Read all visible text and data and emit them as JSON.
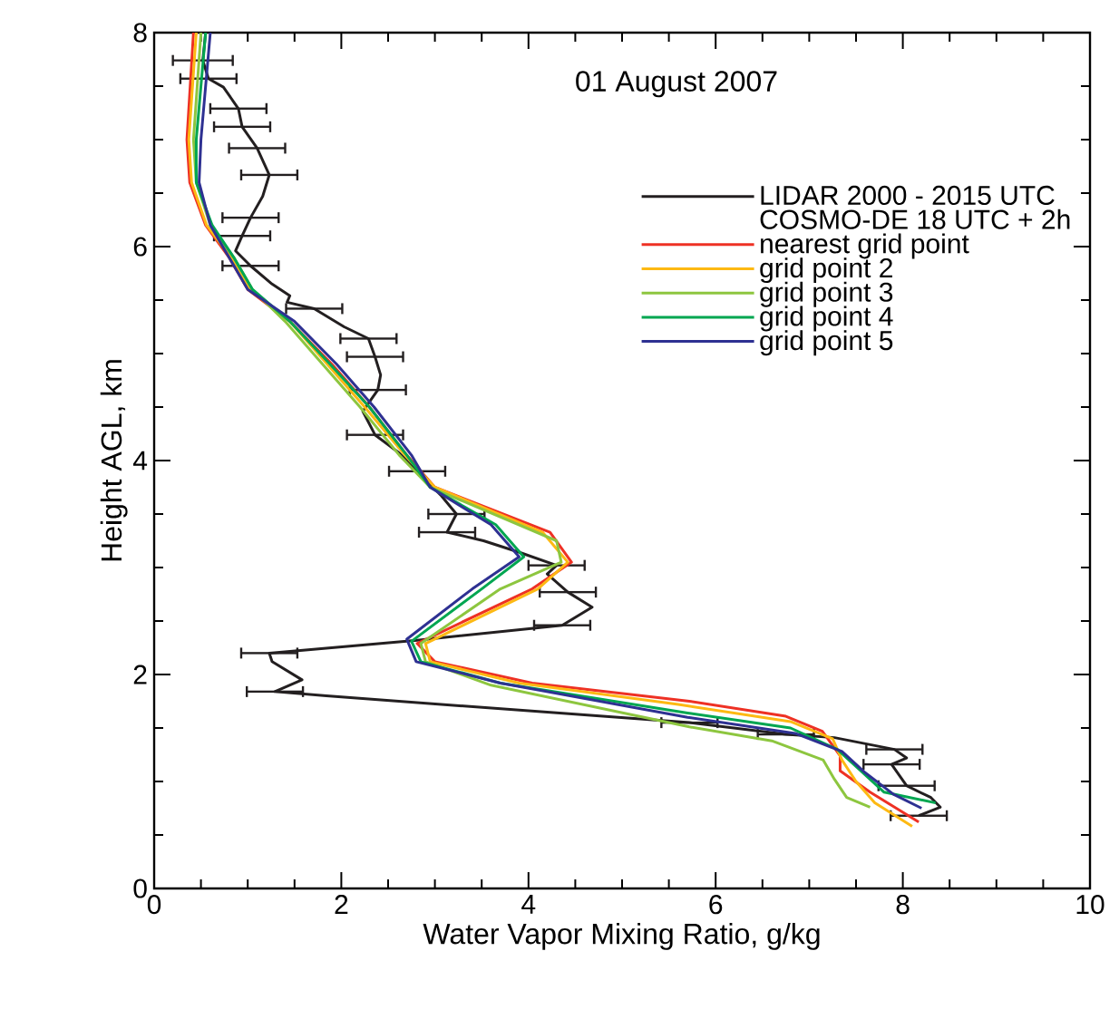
{
  "chart_data": {
    "type": "line",
    "title": "01 August 2007",
    "xlabel": "Water Vapor Mixing Ratio, g/kg",
    "ylabel": "Height AGL, km",
    "legend_title": "COSMO-DE 18 UTC + 2h",
    "legend": "top right",
    "xlim": [
      0,
      10
    ],
    "xticks": [
      0,
      2,
      4,
      6,
      8,
      10
    ],
    "ylim": [
      0,
      8
    ],
    "yticks": [
      0,
      2,
      4,
      6,
      8
    ],
    "series": [
      {
        "name": "LIDAR 2000 - 2015 UTC",
        "color": "#231f20",
        "x": [
          0.55,
          0.52,
          0.58,
          0.74,
          0.9,
          0.94,
          1.1,
          1.23,
          1.16,
          1.03,
          0.94,
          0.87,
          1.03,
          1.26,
          1.45,
          1.42,
          1.71,
          2.03,
          2.29,
          2.36,
          2.42,
          2.39,
          2.23,
          2.36,
          2.62,
          2.81,
          3.07,
          3.23,
          3.13,
          3.52,
          3.91,
          4.3,
          4.2,
          4.42,
          4.68,
          4.36,
          2.81,
          1.23,
          1.26,
          1.58,
          1.29,
          1.84,
          5.72,
          6.75,
          7.27,
          7.91,
          8.04,
          7.88,
          8.04,
          8.3,
          8.4,
          8.17
        ],
        "values": [
          8.0,
          7.74,
          7.57,
          7.49,
          7.29,
          7.12,
          6.92,
          6.67,
          6.47,
          6.27,
          6.1,
          5.96,
          5.82,
          5.65,
          5.54,
          5.48,
          5.42,
          5.25,
          5.14,
          4.97,
          4.8,
          4.66,
          4.46,
          4.24,
          4.07,
          3.9,
          3.67,
          3.5,
          3.33,
          3.25,
          3.14,
          3.02,
          2.94,
          2.77,
          2.63,
          2.46,
          2.32,
          2.2,
          2.12,
          1.95,
          1.84,
          1.8,
          1.55,
          1.44,
          1.41,
          1.3,
          1.22,
          1.16,
          0.96,
          0.85,
          0.76,
          0.68
        ],
        "xerrors": [
          null,
          0.32,
          0.3,
          null,
          0.3,
          0.3,
          0.3,
          0.3,
          null,
          0.3,
          0.3,
          null,
          0.3,
          null,
          null,
          null,
          0.3,
          null,
          0.3,
          0.3,
          null,
          0.3,
          null,
          0.3,
          null,
          0.3,
          null,
          0.3,
          0.3,
          null,
          null,
          0.3,
          null,
          0.3,
          null,
          0.3,
          null,
          0.3,
          null,
          null,
          0.3,
          null,
          0.3,
          0.3,
          null,
          0.3,
          null,
          0.3,
          0.3,
          null,
          null,
          0.3
        ]
      },
      {
        "name": "nearest grid point",
        "color": "#ee3124",
        "x": [
          0.42,
          0.35,
          0.38,
          0.55,
          0.8,
          1.0,
          1.45,
          1.9,
          2.3,
          2.7,
          3.0,
          4.23,
          4.46,
          4.04,
          2.81,
          3.0,
          4.04,
          5.72,
          6.75,
          7.14,
          7.33,
          7.33,
          7.65,
          8.17
        ],
        "values": [
          8.0,
          7.0,
          6.6,
          6.2,
          5.9,
          5.6,
          5.3,
          4.9,
          4.5,
          4.05,
          3.75,
          3.33,
          3.05,
          2.8,
          2.29,
          2.12,
          1.92,
          1.75,
          1.61,
          1.47,
          1.24,
          1.1,
          0.9,
          0.62
        ]
      },
      {
        "name": "grid point 2",
        "color": "#fdb913",
        "x": [
          0.45,
          0.37,
          0.4,
          0.56,
          0.82,
          1.02,
          1.45,
          1.85,
          2.25,
          2.68,
          3.0,
          4.15,
          4.42,
          4.1,
          2.9,
          2.95,
          3.9,
          5.6,
          6.8,
          7.25,
          7.35,
          7.5,
          7.7,
          8.1
        ],
        "values": [
          8.0,
          7.0,
          6.6,
          6.2,
          5.9,
          5.6,
          5.3,
          4.9,
          4.5,
          4.05,
          3.75,
          3.33,
          3.05,
          2.8,
          2.29,
          2.12,
          1.92,
          1.72,
          1.56,
          1.4,
          1.2,
          1.0,
          0.8,
          0.58
        ]
      },
      {
        "name": "grid point 3",
        "color": "#8dc63f",
        "x": [
          0.5,
          0.42,
          0.45,
          0.6,
          0.85,
          1.05,
          1.4,
          1.8,
          2.2,
          2.62,
          2.95,
          4.3,
          4.35,
          3.7,
          2.85,
          2.9,
          3.6,
          5.72,
          6.6,
          7.15,
          7.27,
          7.4,
          7.65
        ],
        "values": [
          8.0,
          7.0,
          6.6,
          6.2,
          5.9,
          5.6,
          5.3,
          4.9,
          4.5,
          4.05,
          3.75,
          3.25,
          3.05,
          2.8,
          2.29,
          2.12,
          1.9,
          1.51,
          1.38,
          1.2,
          1.02,
          0.85,
          0.76
        ]
      },
      {
        "name": "grid point 4",
        "color": "#00a651",
        "x": [
          0.55,
          0.45,
          0.45,
          0.62,
          0.85,
          1.05,
          1.45,
          1.88,
          2.3,
          2.7,
          2.95,
          3.65,
          3.95,
          3.5,
          2.75,
          2.85,
          3.7,
          5.7,
          6.8,
          7.3,
          7.55,
          7.8,
          8.35
        ],
        "values": [
          8.0,
          7.0,
          6.6,
          6.2,
          5.9,
          5.6,
          5.3,
          4.9,
          4.5,
          4.05,
          3.75,
          3.4,
          3.1,
          2.8,
          2.31,
          2.12,
          1.92,
          1.64,
          1.5,
          1.3,
          1.1,
          0.9,
          0.8
        ]
      },
      {
        "name": "grid point 5",
        "color": "#2e3192",
        "x": [
          0.6,
          0.5,
          0.48,
          0.6,
          0.8,
          1.0,
          1.5,
          1.95,
          2.35,
          2.75,
          2.95,
          3.6,
          3.9,
          3.4,
          2.7,
          2.8,
          3.7,
          5.7,
          6.85,
          7.35,
          7.6,
          7.9,
          8.2
        ],
        "values": [
          8.0,
          7.0,
          6.6,
          6.2,
          5.9,
          5.6,
          5.3,
          4.9,
          4.5,
          4.05,
          3.75,
          3.4,
          3.1,
          2.8,
          2.33,
          2.12,
          1.92,
          1.6,
          1.45,
          1.28,
          1.08,
          0.88,
          0.75
        ]
      }
    ]
  }
}
